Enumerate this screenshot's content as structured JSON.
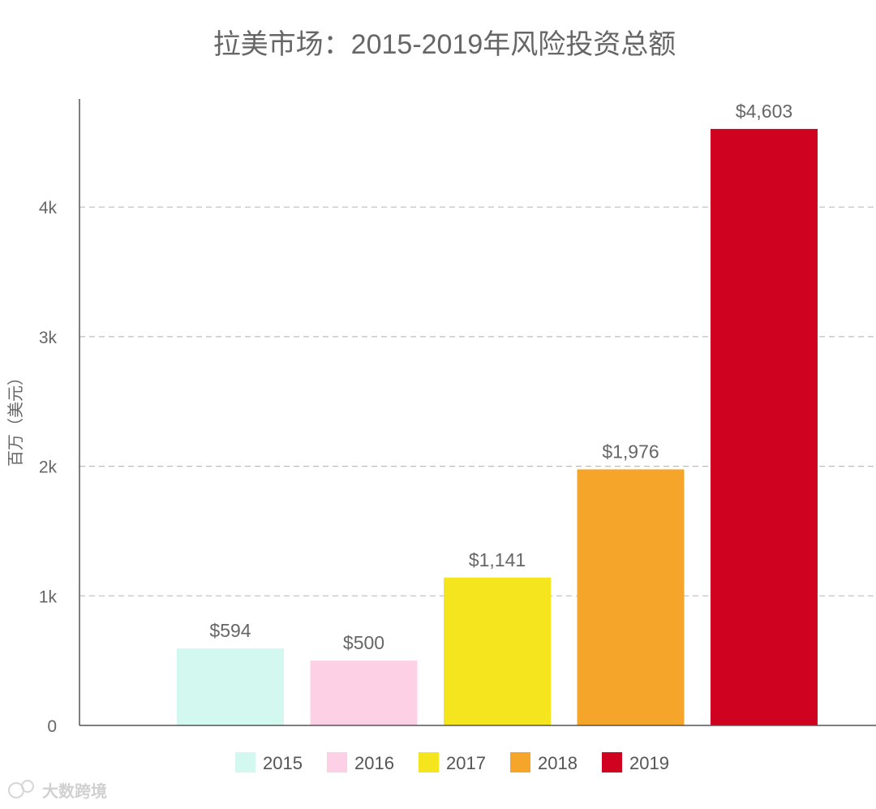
{
  "chart_data": {
    "type": "bar",
    "title": "拉美市场：2015-2019年风险投资总额",
    "ylabel": "百万（美元）",
    "xlabel": "",
    "ylim": [
      0,
      4800
    ],
    "yticks": [
      {
        "value": 0,
        "label": "0"
      },
      {
        "value": 1000,
        "label": "1k"
      },
      {
        "value": 2000,
        "label": "2k"
      },
      {
        "value": 3000,
        "label": "3k"
      },
      {
        "value": 4000,
        "label": "4k"
      }
    ],
    "grid": true,
    "legend_position": "bottom",
    "bars": [
      {
        "category": "2015",
        "value": 594,
        "label": "$594",
        "color": "#d3f8f0"
      },
      {
        "category": "2016",
        "value": 500,
        "label": "$500",
        "color": "#fdd0e6"
      },
      {
        "category": "2017",
        "value": 1141,
        "label": "$1,141",
        "color": "#f5e51f"
      },
      {
        "category": "2018",
        "value": 1976,
        "label": "$1,976",
        "color": "#f4a52a"
      },
      {
        "category": "2019",
        "value": 4603,
        "label": "$4,603",
        "color": "#cf0220"
      }
    ]
  },
  "watermark": {
    "text": "大数跨境",
    "icon": "logo-icon"
  }
}
